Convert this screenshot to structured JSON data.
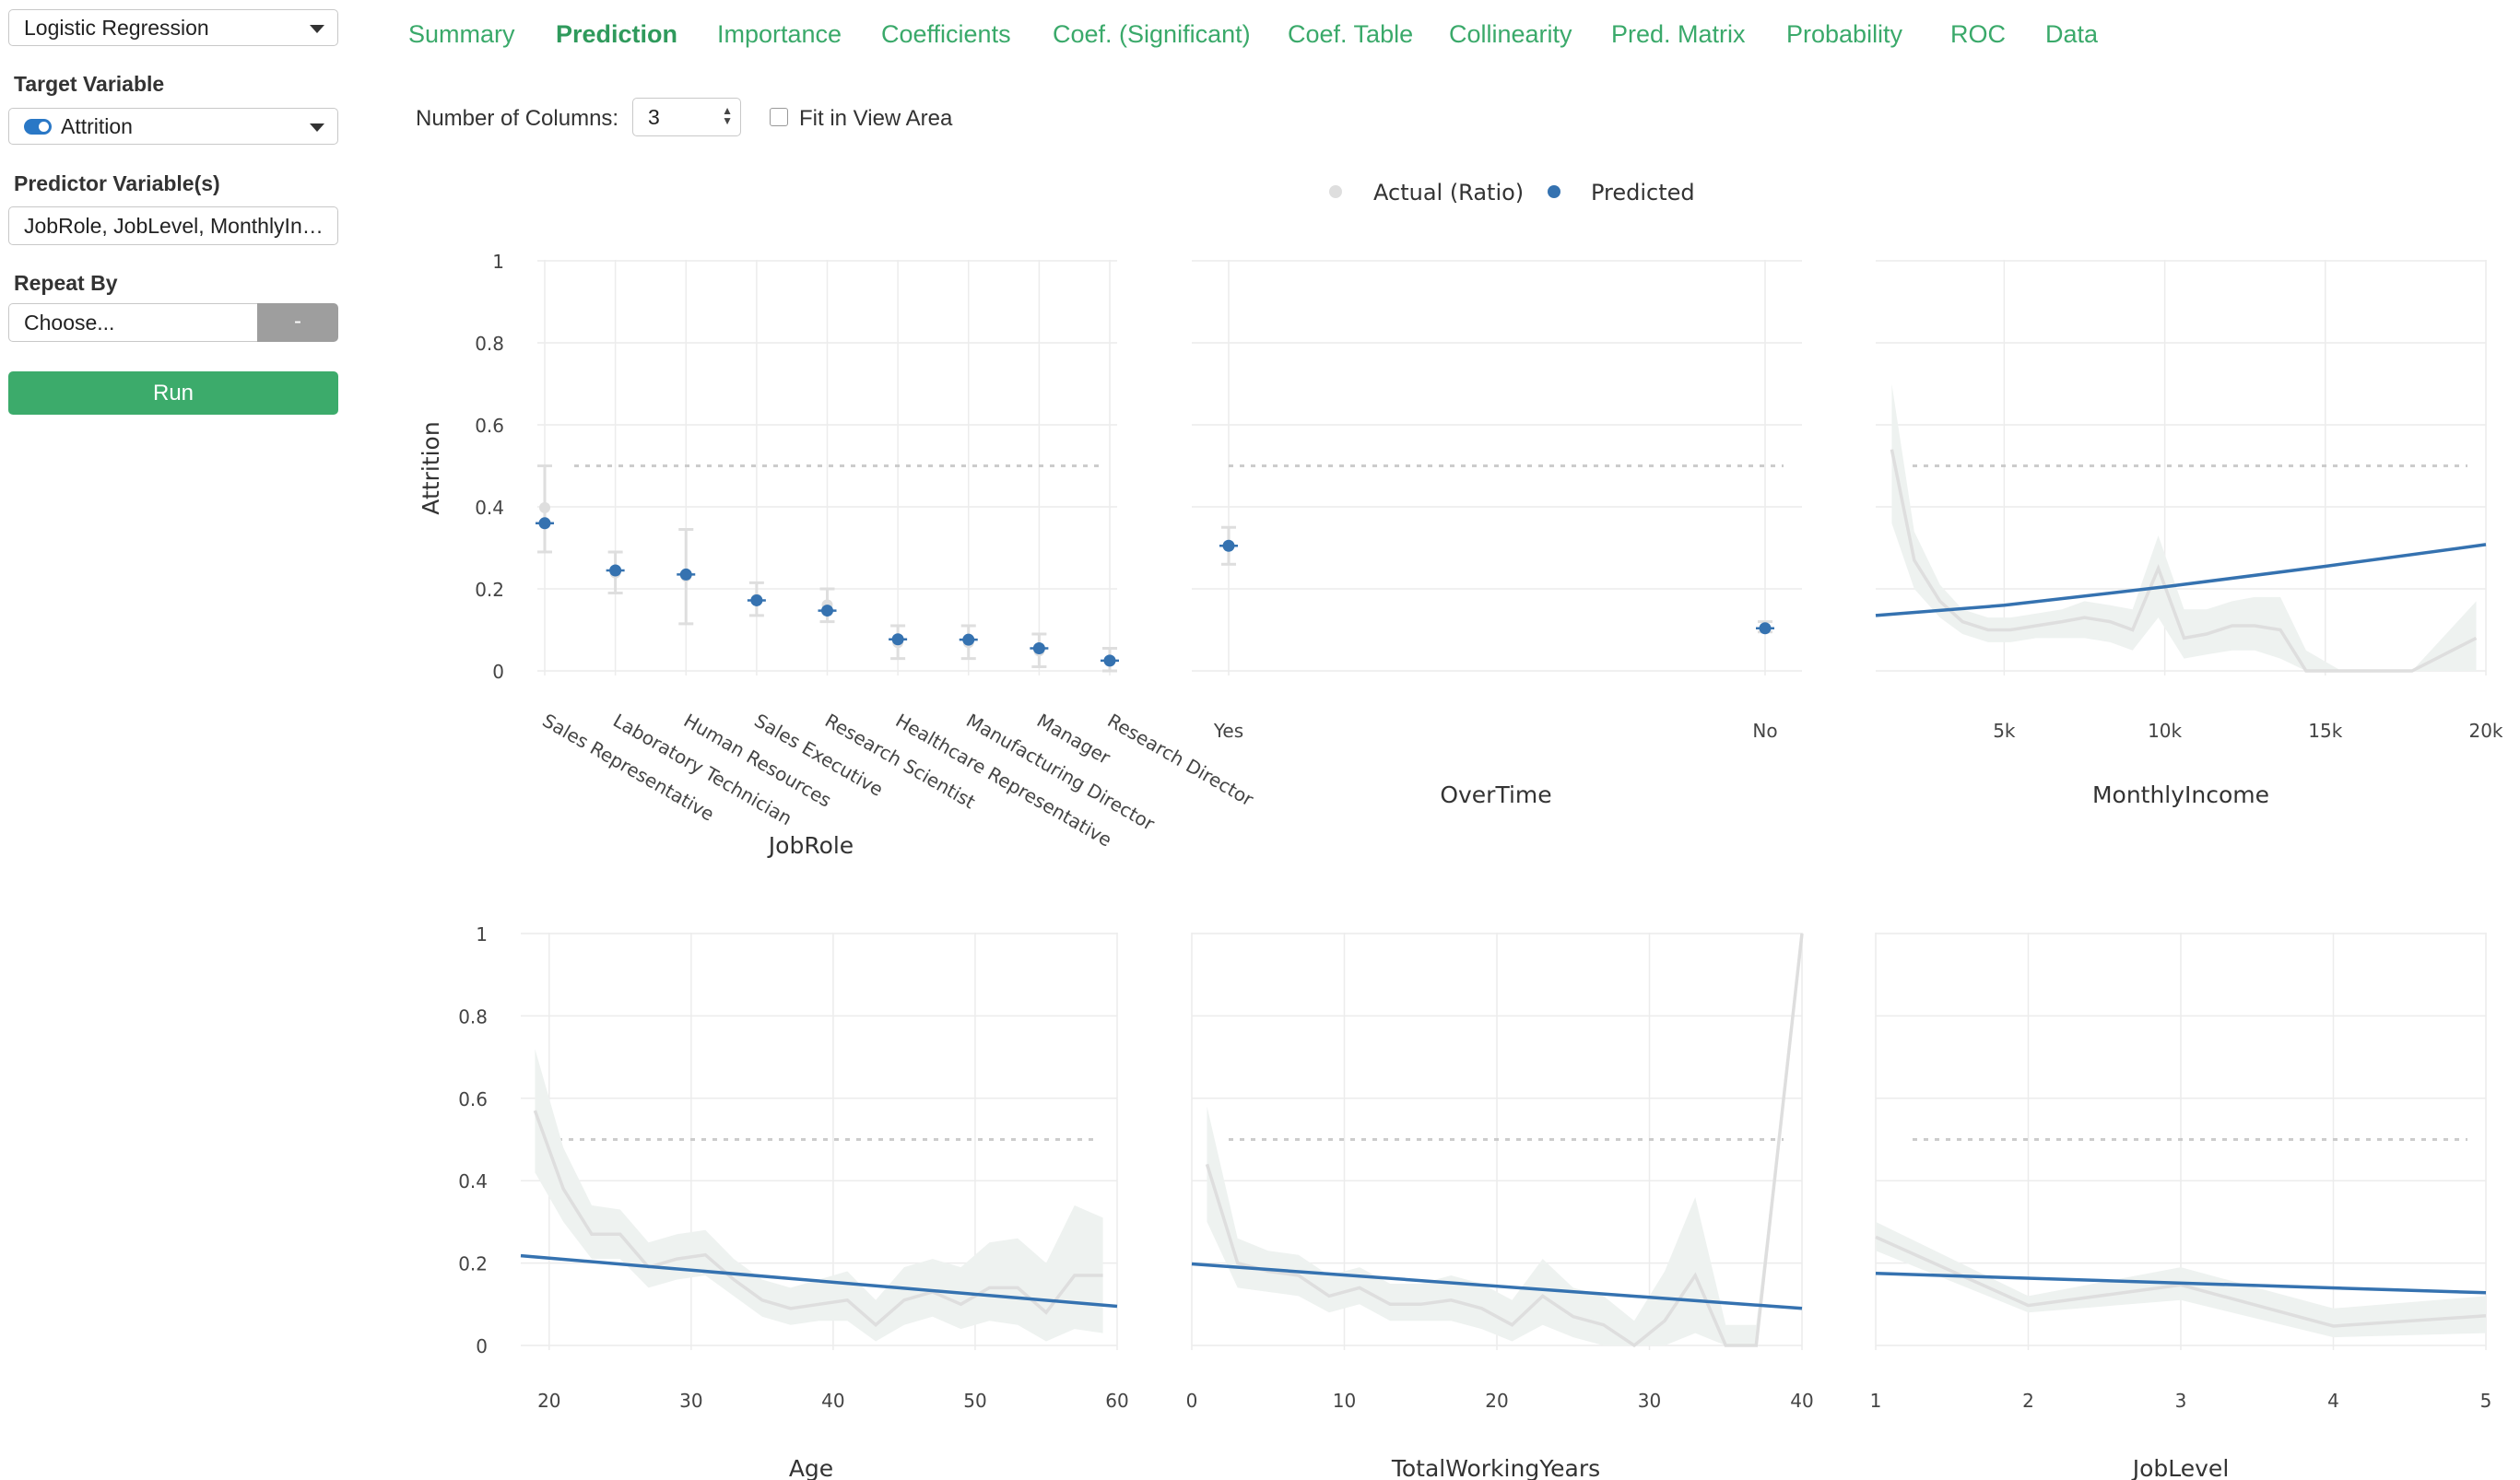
{
  "sidebar": {
    "model_select": "Logistic Regression",
    "target_label": "Target Variable",
    "target_value": "Attrition",
    "predictor_label": "Predictor Variable(s)",
    "predictor_value": "JobRole, JobLevel, MonthlyIncome, Age, OverTime, TotalWorkingYears",
    "repeat_label": "Repeat By",
    "repeat_placeholder": "Choose...",
    "repeat_button": "-",
    "run_button": "Run"
  },
  "tabs": [
    {
      "label": "Summary",
      "active": false
    },
    {
      "label": "Prediction",
      "active": true
    },
    {
      "label": "Importance",
      "active": false
    },
    {
      "label": "Coefficients",
      "active": false
    },
    {
      "label": "Coef. (Significant)",
      "active": false
    },
    {
      "label": "Coef. Table",
      "active": false
    },
    {
      "label": "Collinearity",
      "active": false
    },
    {
      "label": "Pred. Matrix",
      "active": false
    },
    {
      "label": "Probability",
      "active": false
    },
    {
      "label": "ROC",
      "active": false
    },
    {
      "label": "Data",
      "active": false
    }
  ],
  "controls": {
    "columns_label": "Number of Columns:",
    "columns_value": "3",
    "fit_label": "Fit in View Area",
    "fit_checked": false
  },
  "colors": {
    "actual": "#dedede",
    "predicted": "#3572b0",
    "band": "#eef2f0",
    "threshold": "#cccccc",
    "grid": "#ececec",
    "tab_green": "#3aa96a"
  },
  "chart_data": {
    "legend": [
      "Actual (Ratio)",
      "Predicted"
    ],
    "legend_position": "top-center",
    "ylabel": "Attrition",
    "y_ticks": [
      "0",
      "0.2",
      "0.4",
      "0.6",
      "0.8",
      "1"
    ],
    "ylim": [
      0,
      1
    ],
    "threshold": 0.5,
    "panels": [
      {
        "type": "scatter",
        "xlabel": "JobRole",
        "categories": [
          "Sales Representative",
          "Laboratory Technician",
          "Human Resources",
          "Sales Executive",
          "Research Scientist",
          "Healthcare Representative",
          "Manufacturing Director",
          "Manager",
          "Research Director"
        ],
        "predicted": [
          0.36,
          0.245,
          0.235,
          0.172,
          0.147,
          0.077,
          0.076,
          0.055,
          0.025
        ],
        "actual": [
          0.398,
          0.239,
          0.231,
          0.175,
          0.161,
          0.069,
          0.069,
          0.049,
          0.025
        ],
        "lower": [
          0.29,
          0.19,
          0.115,
          0.135,
          0.12,
          0.03,
          0.03,
          0.01,
          0.0
        ],
        "upper": [
          0.5,
          0.29,
          0.345,
          0.215,
          0.2,
          0.11,
          0.11,
          0.09,
          0.055
        ]
      },
      {
        "type": "scatter",
        "xlabel": "OverTime",
        "categories": [
          "Yes",
          "No"
        ],
        "predicted": [
          0.305,
          0.104
        ],
        "actual": [
          0.305,
          0.104
        ],
        "lower": [
          0.26,
          0.095
        ],
        "upper": [
          0.35,
          0.12
        ]
      },
      {
        "type": "line",
        "xlabel": "MonthlyIncome",
        "xlim": [
          1000,
          20000
        ],
        "x_ticks": [
          5000,
          10000,
          15000,
          20000
        ],
        "x_tick_labels": [
          "5k",
          "10k",
          "15k",
          "20k"
        ],
        "predicted_x": [
          1000,
          5000,
          10000,
          15000,
          20000
        ],
        "predicted": [
          0.135,
          0.16,
          0.205,
          0.255,
          0.308
        ],
        "actual_x": [
          1500,
          2200,
          3000,
          3700,
          4500,
          5200,
          6000,
          6800,
          7500,
          8300,
          9000,
          9800,
          10600,
          11300,
          12100,
          12800,
          13600,
          14400,
          15500,
          17700,
          19700
        ],
        "actual": [
          0.54,
          0.27,
          0.17,
          0.12,
          0.1,
          0.1,
          0.11,
          0.12,
          0.13,
          0.12,
          0.1,
          0.25,
          0.08,
          0.09,
          0.11,
          0.11,
          0.1,
          0.0,
          0.0,
          0.0,
          0.08
        ],
        "band_lower": [
          0.36,
          0.2,
          0.13,
          0.09,
          0.07,
          0.07,
          0.08,
          0.08,
          0.08,
          0.07,
          0.05,
          0.13,
          0.03,
          0.04,
          0.05,
          0.05,
          0.03,
          0.0,
          0.0,
          0.0,
          0.0
        ],
        "band_upper": [
          0.7,
          0.34,
          0.21,
          0.15,
          0.13,
          0.13,
          0.14,
          0.15,
          0.17,
          0.16,
          0.15,
          0.33,
          0.15,
          0.15,
          0.17,
          0.18,
          0.18,
          0.05,
          0.0,
          0.0,
          0.17
        ]
      },
      {
        "type": "line",
        "xlabel": "Age",
        "xlim": [
          18,
          60
        ],
        "x_ticks": [
          20,
          30,
          40,
          50,
          60
        ],
        "x_tick_labels": [
          "20",
          "30",
          "40",
          "50",
          "60"
        ],
        "predicted_x": [
          18,
          60
        ],
        "predicted": [
          0.218,
          0.095
        ],
        "actual_x": [
          19,
          21,
          23,
          25,
          27,
          29,
          31,
          33,
          35,
          37,
          39,
          41,
          43,
          45,
          47,
          49,
          51,
          53,
          55,
          57,
          59
        ],
        "actual": [
          0.57,
          0.38,
          0.27,
          0.27,
          0.19,
          0.21,
          0.22,
          0.16,
          0.11,
          0.09,
          0.1,
          0.11,
          0.05,
          0.11,
          0.13,
          0.1,
          0.14,
          0.14,
          0.08,
          0.17,
          0.17
        ],
        "band_lower": [
          0.42,
          0.3,
          0.21,
          0.21,
          0.14,
          0.16,
          0.17,
          0.12,
          0.07,
          0.05,
          0.06,
          0.06,
          0.01,
          0.05,
          0.07,
          0.04,
          0.06,
          0.05,
          0.01,
          0.04,
          0.03
        ],
        "band_upper": [
          0.72,
          0.48,
          0.34,
          0.33,
          0.25,
          0.27,
          0.28,
          0.21,
          0.16,
          0.14,
          0.16,
          0.18,
          0.11,
          0.19,
          0.21,
          0.19,
          0.25,
          0.26,
          0.2,
          0.34,
          0.31
        ]
      },
      {
        "type": "line",
        "xlabel": "TotalWorkingYears",
        "xlim": [
          0,
          40
        ],
        "x_ticks": [
          0,
          10,
          20,
          30,
          40
        ],
        "x_tick_labels": [
          "0",
          "10",
          "20",
          "30",
          "40"
        ],
        "predicted_x": [
          0,
          40
        ],
        "predicted": [
          0.198,
          0.09
        ],
        "actual_x": [
          1,
          3,
          5,
          7,
          9,
          11,
          13,
          15,
          17,
          19,
          21,
          23,
          25,
          27,
          29,
          31,
          33,
          35,
          37,
          40
        ],
        "actual": [
          0.44,
          0.2,
          0.18,
          0.17,
          0.12,
          0.14,
          0.1,
          0.1,
          0.11,
          0.09,
          0.05,
          0.12,
          0.07,
          0.05,
          0.0,
          0.06,
          0.17,
          0.0,
          0.0,
          1.0
        ],
        "band_lower": [
          0.3,
          0.14,
          0.13,
          0.12,
          0.08,
          0.1,
          0.06,
          0.06,
          0.06,
          0.04,
          0.01,
          0.05,
          0.02,
          0.0,
          0.0,
          0.0,
          0.03,
          0.0,
          0.0,
          1.0
        ],
        "band_upper": [
          0.58,
          0.26,
          0.23,
          0.22,
          0.17,
          0.19,
          0.15,
          0.15,
          0.17,
          0.15,
          0.11,
          0.21,
          0.14,
          0.12,
          0.06,
          0.18,
          0.36,
          0.05,
          0.05,
          1.0
        ]
      },
      {
        "type": "line",
        "xlabel": "JobLevel",
        "xlim": [
          1,
          5
        ],
        "x_ticks": [
          1,
          2,
          3,
          4,
          5
        ],
        "x_tick_labels": [
          "1",
          "2",
          "3",
          "4",
          "5"
        ],
        "predicted_x": [
          1,
          5
        ],
        "predicted": [
          0.175,
          0.128
        ],
        "actual_x": [
          1,
          2,
          3,
          4,
          5
        ],
        "actual": [
          0.263,
          0.097,
          0.147,
          0.047,
          0.072
        ],
        "band_lower": [
          0.23,
          0.08,
          0.11,
          0.02,
          0.03
        ],
        "band_upper": [
          0.3,
          0.12,
          0.19,
          0.09,
          0.12
        ]
      }
    ]
  }
}
